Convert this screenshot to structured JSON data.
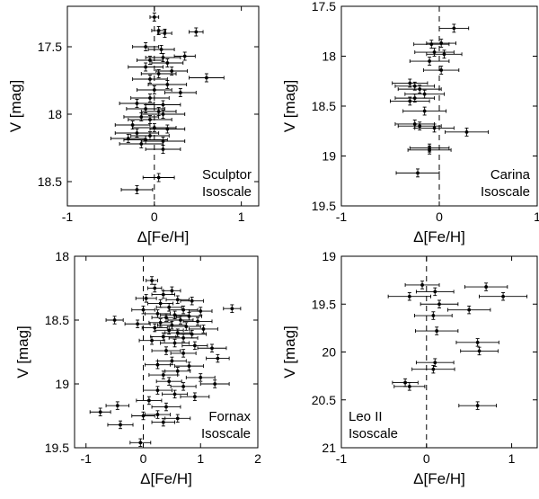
{
  "chart_data": [
    {
      "type": "scatter",
      "panel": "Sculptor",
      "annotation": [
        "Sculptor",
        "Isoscale"
      ],
      "xlabel": "Δ[Fe/H]",
      "ylabel": "V [mag]",
      "xlim": [
        -1,
        1.2
      ],
      "ylim": [
        17.2,
        18.68
      ],
      "y_inverted": true,
      "xticks": [
        -1,
        0,
        1
      ],
      "yticks": [
        17.5,
        18,
        18.5
      ],
      "ytick_labels": [
        "17.5",
        "18",
        "18.5"
      ],
      "reference_line_x": 0,
      "grid": false,
      "points": [
        {
          "x": 0.0,
          "y": 17.28,
          "xerr": 0.05,
          "yerr": 0.03
        },
        {
          "x": 0.05,
          "y": 17.38,
          "xerr": 0.08,
          "yerr": 0.03
        },
        {
          "x": 0.48,
          "y": 17.39,
          "xerr": 0.08,
          "yerr": 0.03
        },
        {
          "x": 0.12,
          "y": 17.4,
          "xerr": 0.08,
          "yerr": 0.03
        },
        {
          "x": -0.1,
          "y": 17.5,
          "xerr": 0.15,
          "yerr": 0.03
        },
        {
          "x": 0.08,
          "y": 17.52,
          "xerr": 0.15,
          "yerr": 0.03
        },
        {
          "x": 0.35,
          "y": 17.57,
          "xerr": 0.12,
          "yerr": 0.03
        },
        {
          "x": 0.1,
          "y": 17.58,
          "xerr": 0.2,
          "yerr": 0.03
        },
        {
          "x": -0.05,
          "y": 17.6,
          "xerr": 0.15,
          "yerr": 0.03
        },
        {
          "x": 0.15,
          "y": 17.62,
          "xerr": 0.18,
          "yerr": 0.03
        },
        {
          "x": -0.1,
          "y": 17.65,
          "xerr": 0.2,
          "yerr": 0.03
        },
        {
          "x": 0.2,
          "y": 17.68,
          "xerr": 0.18,
          "yerr": 0.03
        },
        {
          "x": 0.05,
          "y": 17.7,
          "xerr": 0.2,
          "yerr": 0.03
        },
        {
          "x": 0.6,
          "y": 17.73,
          "xerr": 0.2,
          "yerr": 0.03
        },
        {
          "x": -0.05,
          "y": 17.74,
          "xerr": 0.2,
          "yerr": 0.03
        },
        {
          "x": 0.15,
          "y": 17.78,
          "xerr": 0.22,
          "yerr": 0.03
        },
        {
          "x": 0.0,
          "y": 17.82,
          "xerr": 0.2,
          "yerr": 0.03
        },
        {
          "x": 0.3,
          "y": 17.84,
          "xerr": 0.18,
          "yerr": 0.03
        },
        {
          "x": -0.05,
          "y": 17.88,
          "xerr": 0.22,
          "yerr": 0.03
        },
        {
          "x": -0.2,
          "y": 17.92,
          "xerr": 0.2,
          "yerr": 0.03
        },
        {
          "x": 0.1,
          "y": 17.93,
          "xerr": 0.2,
          "yerr": 0.03
        },
        {
          "x": -0.1,
          "y": 17.96,
          "xerr": 0.22,
          "yerr": 0.03
        },
        {
          "x": 0.05,
          "y": 17.98,
          "xerr": 0.2,
          "yerr": 0.03
        },
        {
          "x": 0.1,
          "y": 18.0,
          "xerr": 0.25,
          "yerr": 0.03
        },
        {
          "x": -0.15,
          "y": 18.02,
          "xerr": 0.2,
          "yerr": 0.03
        },
        {
          "x": -0.05,
          "y": 18.04,
          "xerr": 0.25,
          "yerr": 0.03
        },
        {
          "x": -0.25,
          "y": 18.08,
          "xerr": 0.2,
          "yerr": 0.03
        },
        {
          "x": 0.0,
          "y": 18.1,
          "xerr": 0.25,
          "yerr": 0.03
        },
        {
          "x": 0.15,
          "y": 18.11,
          "xerr": 0.2,
          "yerr": 0.03
        },
        {
          "x": -0.2,
          "y": 18.14,
          "xerr": 0.25,
          "yerr": 0.03
        },
        {
          "x": -0.05,
          "y": 18.16,
          "xerr": 0.22,
          "yerr": 0.03
        },
        {
          "x": -0.3,
          "y": 18.18,
          "xerr": 0.2,
          "yerr": 0.03
        },
        {
          "x": -0.1,
          "y": 18.19,
          "xerr": 0.25,
          "yerr": 0.03
        },
        {
          "x": 0.1,
          "y": 18.2,
          "xerr": 0.25,
          "yerr": 0.03
        },
        {
          "x": -0.15,
          "y": 18.22,
          "xerr": 0.25,
          "yerr": 0.03
        },
        {
          "x": 0.1,
          "y": 18.26,
          "xerr": 0.2,
          "yerr": 0.03
        },
        {
          "x": 0.05,
          "y": 18.47,
          "xerr": 0.18,
          "yerr": 0.03
        },
        {
          "x": -0.2,
          "y": 18.56,
          "xerr": 0.18,
          "yerr": 0.03
        }
      ]
    },
    {
      "type": "scatter",
      "panel": "Carina",
      "annotation": [
        "Carina",
        "Isoscale"
      ],
      "xlabel": "Δ[Fe/H]",
      "ylabel": "V [mag]",
      "xlim": [
        -1,
        1
      ],
      "ylim": [
        17.5,
        19.5
      ],
      "y_inverted": true,
      "xticks": [
        -1,
        0,
        1
      ],
      "yticks": [
        17.5,
        18,
        18.5,
        19,
        19.5
      ],
      "ytick_labels": [
        "17.5",
        "18",
        "18.5",
        "19",
        "19.5"
      ],
      "reference_line_x": 0,
      "grid": false,
      "points": [
        {
          "x": 0.15,
          "y": 17.72,
          "xerr": 0.15,
          "yerr": 0.04
        },
        {
          "x": -0.08,
          "y": 17.88,
          "xerr": 0.18,
          "yerr": 0.04
        },
        {
          "x": 0.02,
          "y": 17.87,
          "xerr": 0.15,
          "yerr": 0.04
        },
        {
          "x": -0.05,
          "y": 17.96,
          "xerr": 0.2,
          "yerr": 0.04
        },
        {
          "x": 0.05,
          "y": 17.98,
          "xerr": 0.18,
          "yerr": 0.04
        },
        {
          "x": -0.1,
          "y": 18.05,
          "xerr": 0.2,
          "yerr": 0.04
        },
        {
          "x": 0.02,
          "y": 18.14,
          "xerr": 0.18,
          "yerr": 0.04
        },
        {
          "x": -0.3,
          "y": 18.27,
          "xerr": 0.18,
          "yerr": 0.04
        },
        {
          "x": -0.25,
          "y": 18.3,
          "xerr": 0.2,
          "yerr": 0.04
        },
        {
          "x": -0.2,
          "y": 18.33,
          "xerr": 0.22,
          "yerr": 0.04
        },
        {
          "x": -0.15,
          "y": 18.38,
          "xerr": 0.2,
          "yerr": 0.04
        },
        {
          "x": -0.25,
          "y": 18.42,
          "xerr": 0.2,
          "yerr": 0.04
        },
        {
          "x": -0.3,
          "y": 18.45,
          "xerr": 0.2,
          "yerr": 0.04
        },
        {
          "x": -0.15,
          "y": 18.55,
          "xerr": 0.22,
          "yerr": 0.04
        },
        {
          "x": -0.25,
          "y": 18.68,
          "xerr": 0.2,
          "yerr": 0.04
        },
        {
          "x": -0.2,
          "y": 18.7,
          "xerr": 0.22,
          "yerr": 0.04
        },
        {
          "x": -0.05,
          "y": 18.72,
          "xerr": 0.2,
          "yerr": 0.04
        },
        {
          "x": 0.28,
          "y": 18.76,
          "xerr": 0.22,
          "yerr": 0.04
        },
        {
          "x": -0.1,
          "y": 18.92,
          "xerr": 0.2,
          "yerr": 0.04
        },
        {
          "x": -0.1,
          "y": 18.94,
          "xerr": 0.22,
          "yerr": 0.04
        },
        {
          "x": -0.22,
          "y": 19.17,
          "xerr": 0.22,
          "yerr": 0.04
        }
      ]
    },
    {
      "type": "scatter",
      "panel": "Fornax",
      "annotation": [
        "Fornax",
        "Isoscale"
      ],
      "xlabel": "Δ[Fe/H]",
      "ylabel": "V [mag]",
      "xlim": [
        -1.2,
        2
      ],
      "ylim": [
        18,
        19.5
      ],
      "y_inverted": true,
      "xticks": [
        -1,
        0,
        1,
        2
      ],
      "yticks": [
        18,
        18.5,
        19,
        19.5
      ],
      "ytick_labels": [
        "18",
        "18.5",
        "19",
        "19.5"
      ],
      "reference_line_x": 0,
      "grid": false,
      "points": [
        {
          "x": 0.15,
          "y": 18.19,
          "xerr": 0.1,
          "yerr": 0.03
        },
        {
          "x": 0.2,
          "y": 18.25,
          "xerr": 0.12,
          "yerr": 0.03
        },
        {
          "x": 0.5,
          "y": 18.27,
          "xerr": 0.15,
          "yerr": 0.03
        },
        {
          "x": 0.35,
          "y": 18.3,
          "xerr": 0.2,
          "yerr": 0.03
        },
        {
          "x": 0.05,
          "y": 18.33,
          "xerr": 0.18,
          "yerr": 0.03
        },
        {
          "x": 0.6,
          "y": 18.34,
          "xerr": 0.2,
          "yerr": 0.03
        },
        {
          "x": 0.85,
          "y": 18.35,
          "xerr": 0.2,
          "yerr": 0.03
        },
        {
          "x": 0.3,
          "y": 18.37,
          "xerr": 0.22,
          "yerr": 0.03
        },
        {
          "x": 0.45,
          "y": 18.4,
          "xerr": 0.22,
          "yerr": 0.03
        },
        {
          "x": 1.55,
          "y": 18.41,
          "xerr": 0.15,
          "yerr": 0.03
        },
        {
          "x": 0.0,
          "y": 18.42,
          "xerr": 0.2,
          "yerr": 0.03
        },
        {
          "x": 0.7,
          "y": 18.42,
          "xerr": 0.25,
          "yerr": 0.03
        },
        {
          "x": 1.0,
          "y": 18.43,
          "xerr": 0.2,
          "yerr": 0.03
        },
        {
          "x": 0.25,
          "y": 18.45,
          "xerr": 0.22,
          "yerr": 0.03
        },
        {
          "x": 0.55,
          "y": 18.46,
          "xerr": 0.25,
          "yerr": 0.03
        },
        {
          "x": 0.8,
          "y": 18.47,
          "xerr": 0.22,
          "yerr": 0.03
        },
        {
          "x": 0.4,
          "y": 18.48,
          "xerr": 0.25,
          "yerr": 0.03
        },
        {
          "x": -0.5,
          "y": 18.5,
          "xerr": 0.15,
          "yerr": 0.03
        },
        {
          "x": 0.65,
          "y": 18.5,
          "xerr": 0.22,
          "yerr": 0.03
        },
        {
          "x": 0.95,
          "y": 18.51,
          "xerr": 0.25,
          "yerr": 0.03
        },
        {
          "x": 0.3,
          "y": 18.52,
          "xerr": 0.2,
          "yerr": 0.03
        },
        {
          "x": -0.1,
          "y": 18.53,
          "xerr": 0.22,
          "yerr": 0.03
        },
        {
          "x": 0.5,
          "y": 18.54,
          "xerr": 0.25,
          "yerr": 0.03
        },
        {
          "x": 0.75,
          "y": 18.55,
          "xerr": 0.25,
          "yerr": 0.03
        },
        {
          "x": 0.2,
          "y": 18.56,
          "xerr": 0.22,
          "yerr": 0.03
        },
        {
          "x": 1.05,
          "y": 18.57,
          "xerr": 0.25,
          "yerr": 0.03
        },
        {
          "x": 0.45,
          "y": 18.58,
          "xerr": 0.25,
          "yerr": 0.03
        },
        {
          "x": 0.6,
          "y": 18.6,
          "xerr": 0.22,
          "yerr": 0.03
        },
        {
          "x": 0.85,
          "y": 18.61,
          "xerr": 0.25,
          "yerr": 0.03
        },
        {
          "x": 0.35,
          "y": 18.63,
          "xerr": 0.22,
          "yerr": 0.03
        },
        {
          "x": 0.7,
          "y": 18.64,
          "xerr": 0.25,
          "yerr": 0.03
        },
        {
          "x": 0.15,
          "y": 18.66,
          "xerr": 0.22,
          "yerr": 0.03
        },
        {
          "x": 0.55,
          "y": 18.68,
          "xerr": 0.25,
          "yerr": 0.03
        },
        {
          "x": 0.9,
          "y": 18.7,
          "xerr": 0.22,
          "yerr": 0.03
        },
        {
          "x": 1.2,
          "y": 18.72,
          "xerr": 0.25,
          "yerr": 0.03
        },
        {
          "x": 0.4,
          "y": 18.74,
          "xerr": 0.25,
          "yerr": 0.03
        },
        {
          "x": 0.7,
          "y": 18.76,
          "xerr": 0.22,
          "yerr": 0.03
        },
        {
          "x": 1.3,
          "y": 18.8,
          "xerr": 0.2,
          "yerr": 0.03
        },
        {
          "x": 0.5,
          "y": 18.82,
          "xerr": 0.25,
          "yerr": 0.03
        },
        {
          "x": 0.25,
          "y": 18.85,
          "xerr": 0.22,
          "yerr": 0.03
        },
        {
          "x": 0.8,
          "y": 18.86,
          "xerr": 0.25,
          "yerr": 0.03
        },
        {
          "x": 0.6,
          "y": 18.9,
          "xerr": 0.22,
          "yerr": 0.03
        },
        {
          "x": 0.35,
          "y": 18.93,
          "xerr": 0.25,
          "yerr": 0.03
        },
        {
          "x": 1.0,
          "y": 18.95,
          "xerr": 0.25,
          "yerr": 0.03
        },
        {
          "x": 0.45,
          "y": 18.98,
          "xerr": 0.22,
          "yerr": 0.03
        },
        {
          "x": 1.25,
          "y": 19.0,
          "xerr": 0.25,
          "yerr": 0.03
        },
        {
          "x": 0.7,
          "y": 19.02,
          "xerr": 0.22,
          "yerr": 0.03
        },
        {
          "x": 0.25,
          "y": 19.05,
          "xerr": 0.25,
          "yerr": 0.03
        },
        {
          "x": 0.55,
          "y": 19.08,
          "xerr": 0.22,
          "yerr": 0.03
        },
        {
          "x": 0.9,
          "y": 19.1,
          "xerr": 0.25,
          "yerr": 0.03
        },
        {
          "x": 0.1,
          "y": 19.13,
          "xerr": 0.22,
          "yerr": 0.03
        },
        {
          "x": -0.45,
          "y": 19.17,
          "xerr": 0.2,
          "yerr": 0.03
        },
        {
          "x": 0.4,
          "y": 19.18,
          "xerr": 0.25,
          "yerr": 0.03
        },
        {
          "x": -0.75,
          "y": 19.22,
          "xerr": 0.18,
          "yerr": 0.03
        },
        {
          "x": 0.25,
          "y": 19.24,
          "xerr": 0.22,
          "yerr": 0.03
        },
        {
          "x": 0.0,
          "y": 19.25,
          "xerr": 0.2,
          "yerr": 0.03
        },
        {
          "x": 0.6,
          "y": 19.27,
          "xerr": 0.22,
          "yerr": 0.03
        },
        {
          "x": 0.35,
          "y": 19.3,
          "xerr": 0.2,
          "yerr": 0.03
        },
        {
          "x": -0.4,
          "y": 19.32,
          "xerr": 0.22,
          "yerr": 0.03
        },
        {
          "x": -0.05,
          "y": 19.46,
          "xerr": 0.18,
          "yerr": 0.03
        }
      ]
    },
    {
      "type": "scatter",
      "panel": "Leo II",
      "annotation": [
        "Leo II",
        "Isoscale"
      ],
      "xlabel": "Δ[Fe/H]",
      "ylabel": "V [mag]",
      "xlim": [
        -1,
        1.3
      ],
      "ylim": [
        19,
        21
      ],
      "y_inverted": true,
      "xticks": [
        -1,
        0,
        1
      ],
      "yticks": [
        19,
        19.5,
        20,
        20.5,
        21
      ],
      "ytick_labels": [
        "19",
        "19.5",
        "20",
        "20.5",
        "21"
      ],
      "reference_line_x": 0,
      "grid": false,
      "points": [
        {
          "x": -0.05,
          "y": 19.3,
          "xerr": 0.2,
          "yerr": 0.04
        },
        {
          "x": 0.7,
          "y": 19.32,
          "xerr": 0.25,
          "yerr": 0.04
        },
        {
          "x": 0.1,
          "y": 19.37,
          "xerr": 0.22,
          "yerr": 0.04
        },
        {
          "x": 0.9,
          "y": 19.42,
          "xerr": 0.28,
          "yerr": 0.04
        },
        {
          "x": -0.2,
          "y": 19.42,
          "xerr": 0.25,
          "yerr": 0.04
        },
        {
          "x": 0.15,
          "y": 19.5,
          "xerr": 0.22,
          "yerr": 0.04
        },
        {
          "x": 0.5,
          "y": 19.56,
          "xerr": 0.25,
          "yerr": 0.04
        },
        {
          "x": 0.08,
          "y": 19.62,
          "xerr": 0.22,
          "yerr": 0.04
        },
        {
          "x": 0.12,
          "y": 19.78,
          "xerr": 0.25,
          "yerr": 0.04
        },
        {
          "x": 0.6,
          "y": 19.9,
          "xerr": 0.25,
          "yerr": 0.04
        },
        {
          "x": 0.62,
          "y": 19.99,
          "xerr": 0.22,
          "yerr": 0.04
        },
        {
          "x": 0.1,
          "y": 20.11,
          "xerr": 0.22,
          "yerr": 0.04
        },
        {
          "x": 0.08,
          "y": 20.18,
          "xerr": 0.25,
          "yerr": 0.04
        },
        {
          "x": -0.25,
          "y": 20.32,
          "xerr": 0.15,
          "yerr": 0.04
        },
        {
          "x": -0.2,
          "y": 20.36,
          "xerr": 0.18,
          "yerr": 0.04
        },
        {
          "x": 0.6,
          "y": 20.56,
          "xerr": 0.22,
          "yerr": 0.04
        }
      ]
    }
  ]
}
